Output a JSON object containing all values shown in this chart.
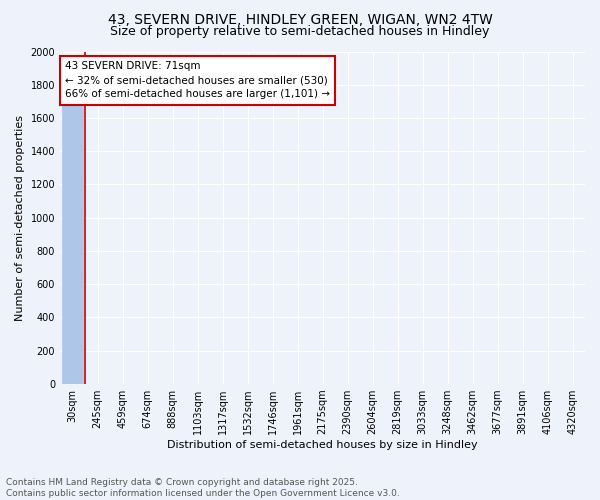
{
  "title_line1": "43, SEVERN DRIVE, HINDLEY GREEN, WIGAN, WN2 4TW",
  "title_line2": "Size of property relative to semi-detached houses in Hindley",
  "xlabel": "Distribution of semi-detached houses by size in Hindley",
  "ylabel": "Number of semi-detached properties",
  "categories": [
    "30sqm",
    "245sqm",
    "459sqm",
    "674sqm",
    "888sqm",
    "1103sqm",
    "1317sqm",
    "1532sqm",
    "1746sqm",
    "1961sqm",
    "2175sqm",
    "2390sqm",
    "2604sqm",
    "2819sqm",
    "3033sqm",
    "3248sqm",
    "3462sqm",
    "3677sqm",
    "3891sqm",
    "4106sqm",
    "4320sqm"
  ],
  "bar_values": [
    1680,
    0,
    0,
    0,
    0,
    0,
    0,
    0,
    0,
    0,
    0,
    0,
    0,
    0,
    0,
    0,
    0,
    0,
    0,
    0,
    0
  ],
  "bar_color": "#aec6e8",
  "property_size": 71,
  "pct_smaller": 32,
  "count_smaller": 530,
  "pct_larger": 66,
  "count_larger": 1101,
  "annotation_line1": "43 SEVERN DRIVE: 71sqm",
  "annotation_line2": "← 32% of semi-detached houses are smaller (530)",
  "annotation_line3": "66% of semi-detached houses are larger (1,101) →",
  "ylim": [
    0,
    2000
  ],
  "yticks": [
    0,
    200,
    400,
    600,
    800,
    1000,
    1200,
    1400,
    1600,
    1800,
    2000
  ],
  "vline_x": 0.5,
  "footer": "Contains HM Land Registry data © Crown copyright and database right 2025.\nContains public sector information licensed under the Open Government Licence v3.0.",
  "bg_color": "#eef3fb",
  "grid_color": "#ffffff",
  "annotation_box_color": "#ffffff",
  "annotation_box_edge": "#cc0000",
  "vline_color": "#cc0000",
  "title_fontsize": 10,
  "subtitle_fontsize": 9,
  "axis_label_fontsize": 8,
  "tick_fontsize": 7,
  "annotation_fontsize": 7.5,
  "footer_fontsize": 6.5
}
